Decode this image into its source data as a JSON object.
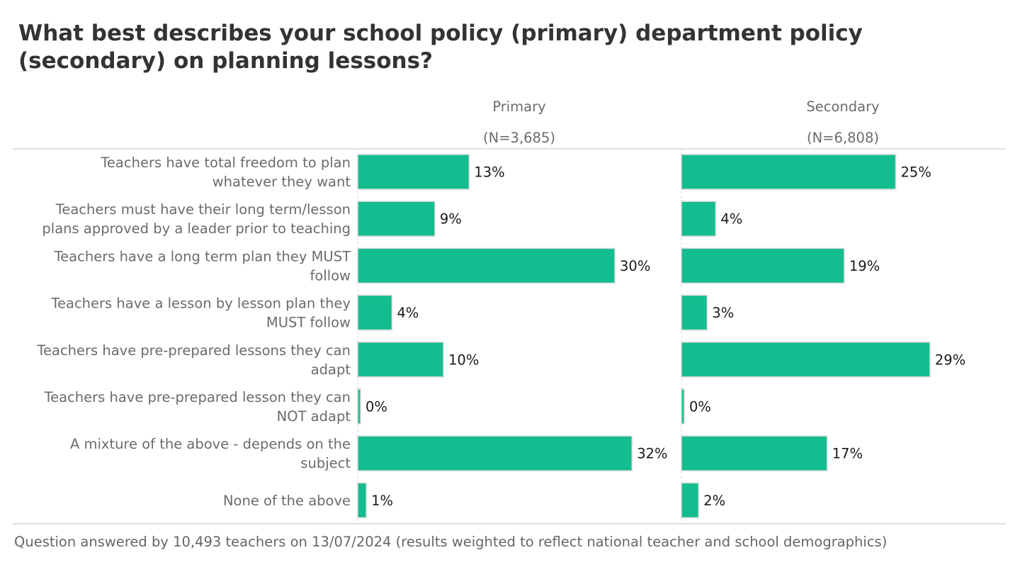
{
  "chart_data": {
    "type": "bar",
    "orientation": "horizontal",
    "title": "What best describes your school policy (primary) department policy (secondary) on planning lessons?",
    "categories": [
      "Teachers have total freedom to plan whatever they want",
      "Teachers must have their long term/lesson plans approved by a leader prior to teaching",
      "Teachers have a long term plan they MUST follow",
      "Teachers have a lesson by lesson plan they MUST follow",
      "Teachers have pre-prepared lessons they can adapt",
      "Teachers have pre-prepared lesson they can NOT adapt",
      "A mixture of the above - depends on the subject",
      "None of the above"
    ],
    "category_label_lines": [
      [
        "Teachers have total freedom to plan",
        "whatever they want"
      ],
      [
        "Teachers must have their long term/lesson",
        "plans approved by a leader prior to teaching"
      ],
      [
        "Teachers have a long term plan they MUST",
        "follow"
      ],
      [
        "Teachers have a lesson by lesson plan they",
        "MUST follow"
      ],
      [
        "Teachers have pre-prepared lessons they can",
        "adapt"
      ],
      [
        "Teachers have pre-prepared lesson they can",
        "NOT adapt"
      ],
      [
        "A mixture of the above - depends on the",
        "subject"
      ],
      [
        "None of the above"
      ]
    ],
    "series": [
      {
        "name": "Primary",
        "n_label": "(N=3,685)",
        "values": [
          13,
          9,
          30,
          4,
          10,
          0,
          32,
          1
        ],
        "labels": [
          "13%",
          "9%",
          "30%",
          "4%",
          "10%",
          "0%",
          "32%",
          "1%"
        ]
      },
      {
        "name": "Secondary",
        "n_label": "(N=6,808)",
        "values": [
          25,
          4,
          19,
          3,
          29,
          0,
          17,
          2
        ],
        "labels": [
          "25%",
          "4%",
          "19%",
          "3%",
          "29%",
          "0%",
          "17%",
          "2%"
        ]
      }
    ],
    "xlabel": "",
    "ylabel": "",
    "xlim": [
      0,
      36
    ],
    "unit": "%",
    "grid": false,
    "legend": "none",
    "colors": {
      "bar": "#13bd8f",
      "bar_border": "#d9d9d9",
      "label_text": "#6b6b6b",
      "value_text": "#1a1a1a",
      "header_text": "#6b6b6b",
      "divider": "#cccccc"
    }
  },
  "footer": "Question answered by 10,493 teachers on 13/07/2024 (results weighted to reflect national teacher and school demographics)"
}
